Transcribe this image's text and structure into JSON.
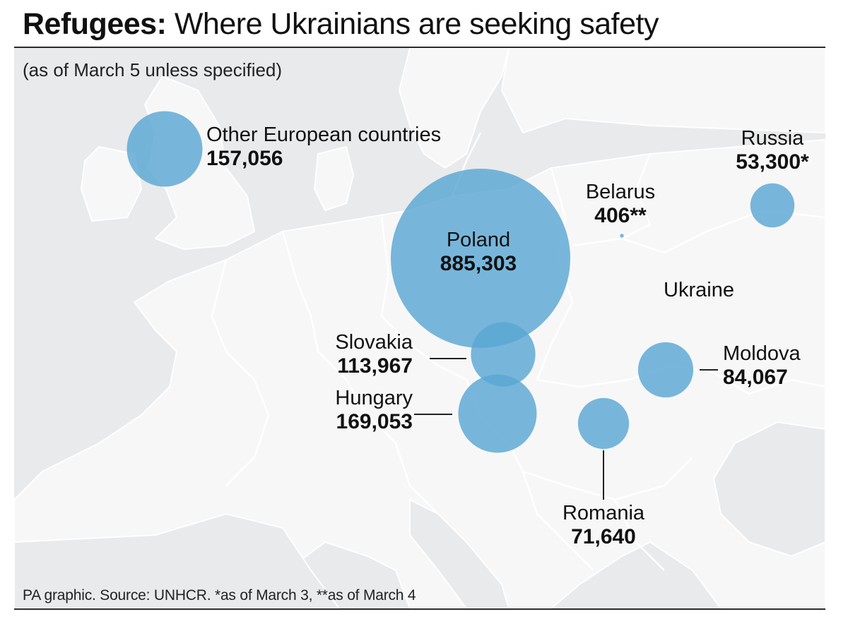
{
  "header": {
    "title_bold": "Refugees:",
    "title_rest": " Where Ukrainians are seeking safety",
    "subtitle": "(as of March 5 unless specified)"
  },
  "map_labels": {
    "ukraine": "Ukraine"
  },
  "countries": [
    {
      "id": "other",
      "name": "Other European countries",
      "value": "157,056",
      "refugees": 157056
    },
    {
      "id": "poland",
      "name": "Poland",
      "value": "885,303",
      "refugees": 885303
    },
    {
      "id": "slovakia",
      "name": "Slovakia",
      "value": "113,967",
      "refugees": 113967
    },
    {
      "id": "hungary",
      "name": "Hungary",
      "value": "169,053",
      "refugees": 169053
    },
    {
      "id": "romania",
      "name": "Romania",
      "value": "71,640",
      "refugees": 71640
    },
    {
      "id": "moldova",
      "name": "Moldova",
      "value": "84,067",
      "refugees": 84067
    },
    {
      "id": "belarus",
      "name": "Belarus",
      "value": "406**",
      "refugees": 406
    },
    {
      "id": "russia",
      "name": "Russia",
      "value": "53,300*",
      "refugees": 53300
    }
  ],
  "footer": {
    "source": "PA graphic. Source: UNHCR. *as of March 3, **as of March 4"
  },
  "colors": {
    "bubble": "#5aa7d3",
    "land": "#f7f7f7",
    "sea": "#e9eaec",
    "border": "#ffffff"
  }
}
